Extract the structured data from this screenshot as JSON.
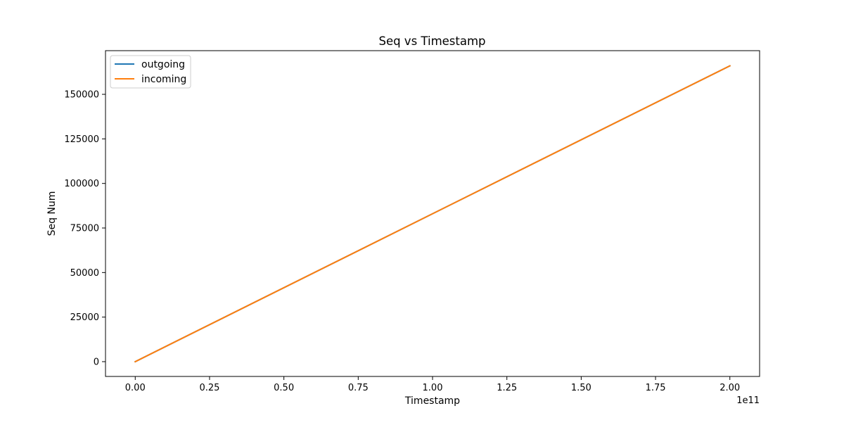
{
  "chart_data": {
    "type": "line",
    "title": "Seq vs Timestamp",
    "xlabel": "Timestamp",
    "ylabel": "Seq Num",
    "x_offset_label": "1e11",
    "x_tick_values": [
      0,
      0.25,
      0.5,
      0.75,
      1.0,
      1.25,
      1.5,
      1.75,
      2.0
    ],
    "x_tick_labels": [
      "0.00",
      "0.25",
      "0.50",
      "0.75",
      "1.00",
      "1.25",
      "1.50",
      "1.75",
      "2.00"
    ],
    "y_tick_values": [
      0,
      25000,
      50000,
      75000,
      100000,
      125000,
      150000
    ],
    "y_tick_labels": [
      "0",
      "25000",
      "50000",
      "75000",
      "100000",
      "125000",
      "150000"
    ],
    "xlim": [
      -0.1,
      2.1
    ],
    "ylim": [
      -8300,
      174500
    ],
    "grid": false,
    "legend_position": "upper-left",
    "series": [
      {
        "name": "outgoing",
        "color": "#1f77b4",
        "x": [
          0,
          2.0
        ],
        "y": [
          0,
          166000
        ]
      },
      {
        "name": "incoming",
        "color": "#ff7f0e",
        "x": [
          0,
          2.0
        ],
        "y": [
          0,
          166000
        ]
      }
    ]
  }
}
